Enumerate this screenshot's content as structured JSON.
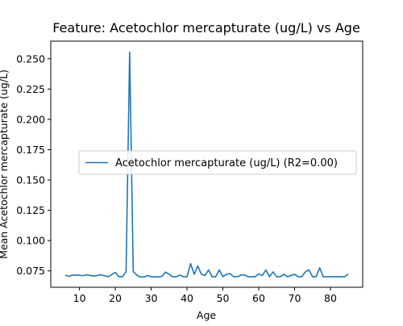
{
  "chart_data": {
    "type": "line",
    "title": "Feature: Acetochlor mercapturate (ug/L) vs Age",
    "xlabel": "Age",
    "ylabel": "Mean Acetochlor mercapturate (ug/L)",
    "xlim": [
      2,
      89
    ],
    "ylim": [
      0.0615,
      0.2645
    ],
    "xticks": [
      10,
      20,
      30,
      40,
      50,
      60,
      70,
      80
    ],
    "yticks": [
      0.075,
      0.1,
      0.125,
      0.15,
      0.175,
      0.2,
      0.225,
      0.25
    ],
    "ytick_labels": [
      "0.075",
      "0.100",
      "0.125",
      "0.150",
      "0.175",
      "0.200",
      "0.225",
      "0.250"
    ],
    "grid": false,
    "legend_position": "center-right",
    "series": [
      {
        "name": "Acetochlor mercapturate (ug/L) (R2=0.00)",
        "color": "#1f77b4",
        "x": [
          6,
          7,
          8,
          9,
          10,
          11,
          12,
          13,
          14,
          15,
          16,
          17,
          18,
          19,
          20,
          21,
          22,
          23,
          24,
          25,
          26,
          27,
          28,
          29,
          30,
          31,
          32,
          33,
          34,
          35,
          36,
          37,
          38,
          39,
          40,
          41,
          42,
          43,
          44,
          45,
          46,
          47,
          48,
          49,
          50,
          51,
          52,
          53,
          54,
          55,
          56,
          57,
          58,
          59,
          60,
          61,
          62,
          63,
          64,
          65,
          66,
          67,
          68,
          69,
          70,
          71,
          72,
          73,
          74,
          75,
          76,
          77,
          78,
          79,
          80,
          81,
          82,
          83,
          84,
          85
        ],
        "y": [
          0.0715,
          0.0705,
          0.0715,
          0.0715,
          0.0715,
          0.071,
          0.0718,
          0.0712,
          0.0708,
          0.0712,
          0.0718,
          0.071,
          0.0702,
          0.072,
          0.0738,
          0.0702,
          0.0702,
          0.0745,
          0.2555,
          0.0745,
          0.0715,
          0.07,
          0.07,
          0.0712,
          0.0702,
          0.07,
          0.07,
          0.0705,
          0.074,
          0.0722,
          0.0702,
          0.0702,
          0.0715,
          0.0702,
          0.0702,
          0.081,
          0.0722,
          0.079,
          0.0722,
          0.0712,
          0.0758,
          0.0702,
          0.0702,
          0.0758,
          0.0702,
          0.0722,
          0.0728,
          0.0702,
          0.0702,
          0.0715,
          0.0718,
          0.0702,
          0.0702,
          0.0702,
          0.0725,
          0.0712,
          0.0758,
          0.0702,
          0.0742,
          0.0702,
          0.0702,
          0.0722,
          0.0702,
          0.0712,
          0.0722,
          0.0702,
          0.0702,
          0.0742,
          0.0758,
          0.0702,
          0.0702,
          0.0775,
          0.0702,
          0.0702,
          0.0702,
          0.0702,
          0.0702,
          0.0702,
          0.0702,
          0.0725
        ]
      }
    ]
  }
}
